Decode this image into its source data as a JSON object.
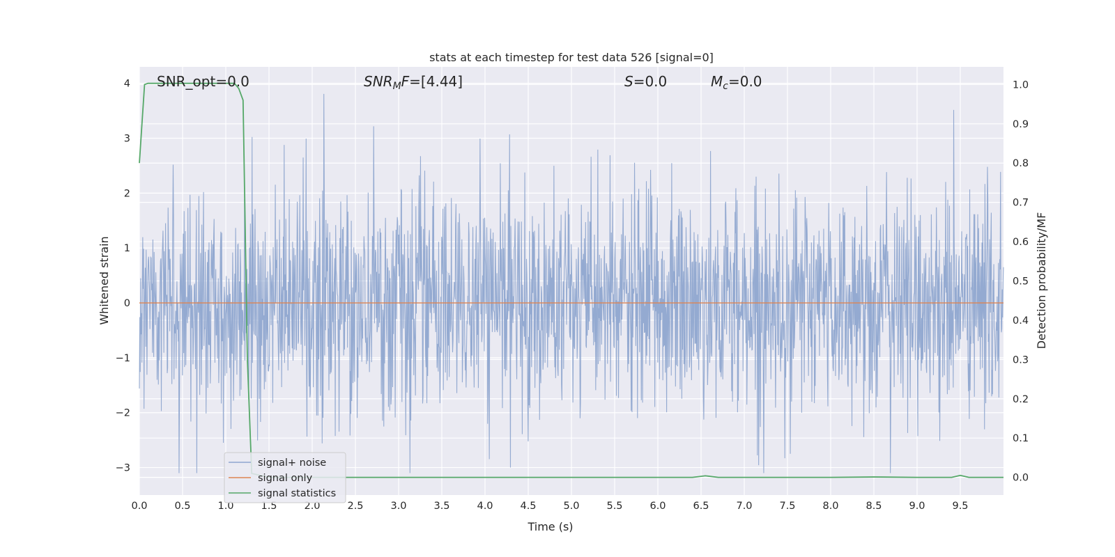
{
  "chart_data": {
    "type": "line",
    "title": "stats at each timestep for test data 526 [signal=0]",
    "xlabel": "Time (s)",
    "ylabel": "Whitened strain",
    "ylabel_right": "Detection probability/MF",
    "xlim": [
      0.0,
      10.0
    ],
    "ylim": [
      -3.5,
      4.3
    ],
    "ylim_right": [
      -0.045,
      1.045
    ],
    "xticks": [
      "0.0",
      "0.5",
      "1.0",
      "1.5",
      "2.0",
      "2.5",
      "3.0",
      "3.5",
      "4.0",
      "4.5",
      "5.0",
      "5.5",
      "6.0",
      "6.5",
      "7.0",
      "7.5",
      "8.0",
      "8.5",
      "9.0",
      "9.5"
    ],
    "yticks_left": [
      "4",
      "3",
      "2",
      "1",
      "0",
      "−1",
      "−2",
      "−3"
    ],
    "yticks_right": [
      "1.0",
      "0.9",
      "0.8",
      "0.7",
      "0.6",
      "0.5",
      "0.4",
      "0.3",
      "0.2",
      "0.1",
      "0.0"
    ],
    "grid": true,
    "legend_position": "lower-left",
    "annotations": {
      "snr_opt": "SNR_opt=0.0",
      "snr_mf_prefix": "SNR",
      "snr_mf_sub": "M",
      "snr_mf_mid": "F",
      "snr_mf_value": "=[4.44]",
      "s_symbol": "S",
      "s_value": "=0.0",
      "mc_symbol": "M",
      "mc_sub": "c",
      "mc_value": "=0.0"
    },
    "series": [
      {
        "name": "signal+ noise",
        "axis": "left",
        "color": "#8fa6cf",
        "note_type": "dense noise trace",
        "sample_count": 2048,
        "approx_std": 1.0,
        "approx_range": [
          -3.1,
          4.1
        ]
      },
      {
        "name": "signal only",
        "axis": "left",
        "color": "#dd8452",
        "x": [
          0.0,
          10.0
        ],
        "y": [
          0.0,
          0.0
        ]
      },
      {
        "name": "signal statistics",
        "axis": "right",
        "color": "#55a868",
        "x": [
          0.0,
          0.06,
          0.1,
          0.2,
          0.5,
          0.9,
          1.1,
          1.15,
          1.2,
          1.25,
          1.3,
          1.5,
          2.0,
          3.0,
          4.0,
          5.0,
          6.0,
          6.4,
          6.55,
          6.7,
          7.0,
          8.0,
          8.5,
          9.0,
          9.4,
          9.5,
          9.6,
          10.0
        ],
        "y": [
          0.8,
          1.0,
          1.003,
          1.003,
          1.003,
          1.003,
          1.003,
          0.99,
          0.96,
          0.3,
          0.01,
          0.0,
          0.0,
          0.0,
          0.0,
          0.0,
          0.0,
          0.0,
          0.004,
          0.0,
          0.0,
          0.0,
          0.001,
          0.0,
          0.0,
          0.005,
          0.0,
          0.0
        ]
      }
    ]
  }
}
